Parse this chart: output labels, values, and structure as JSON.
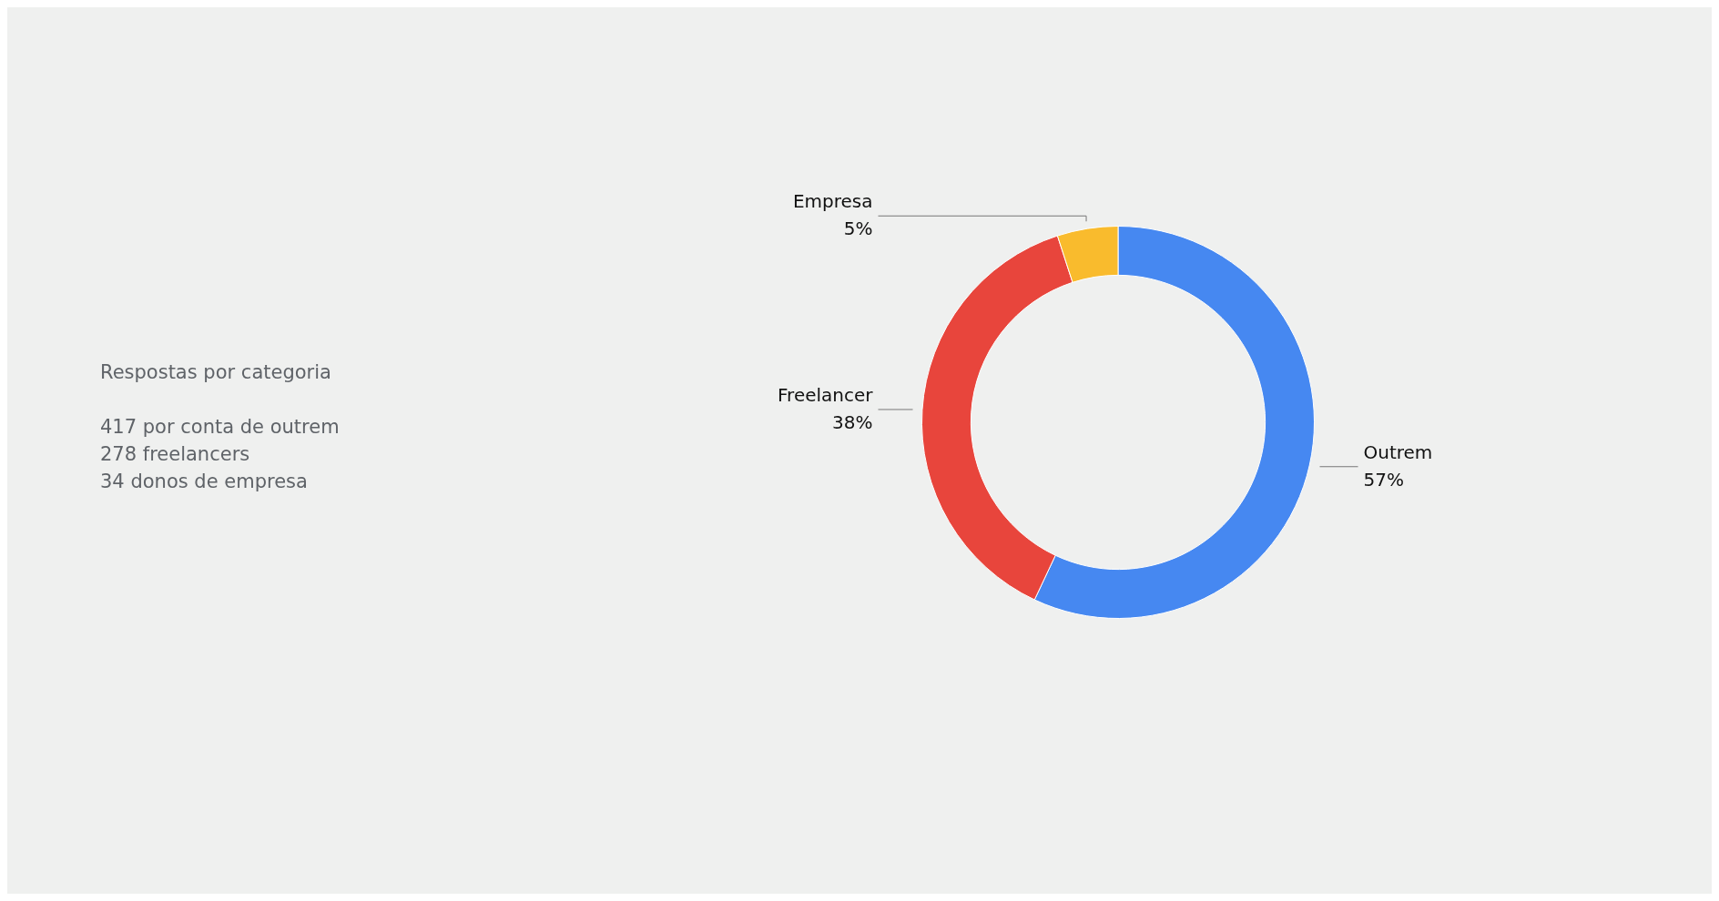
{
  "chart_data": {
    "type": "donut",
    "title": "Respostas por categoria",
    "annotations": [
      "417 por conta de outrem",
      "278 freelancers",
      "34 donos de empresa"
    ],
    "categories": [
      "Outrem",
      "Freelancer",
      "Empresa"
    ],
    "values": [
      57,
      38,
      5
    ],
    "value_labels": [
      "57%",
      "38%",
      "5%"
    ],
    "colors": [
      "#4688f1",
      "#e8453c",
      "#f9bb2d"
    ],
    "legend": false
  }
}
